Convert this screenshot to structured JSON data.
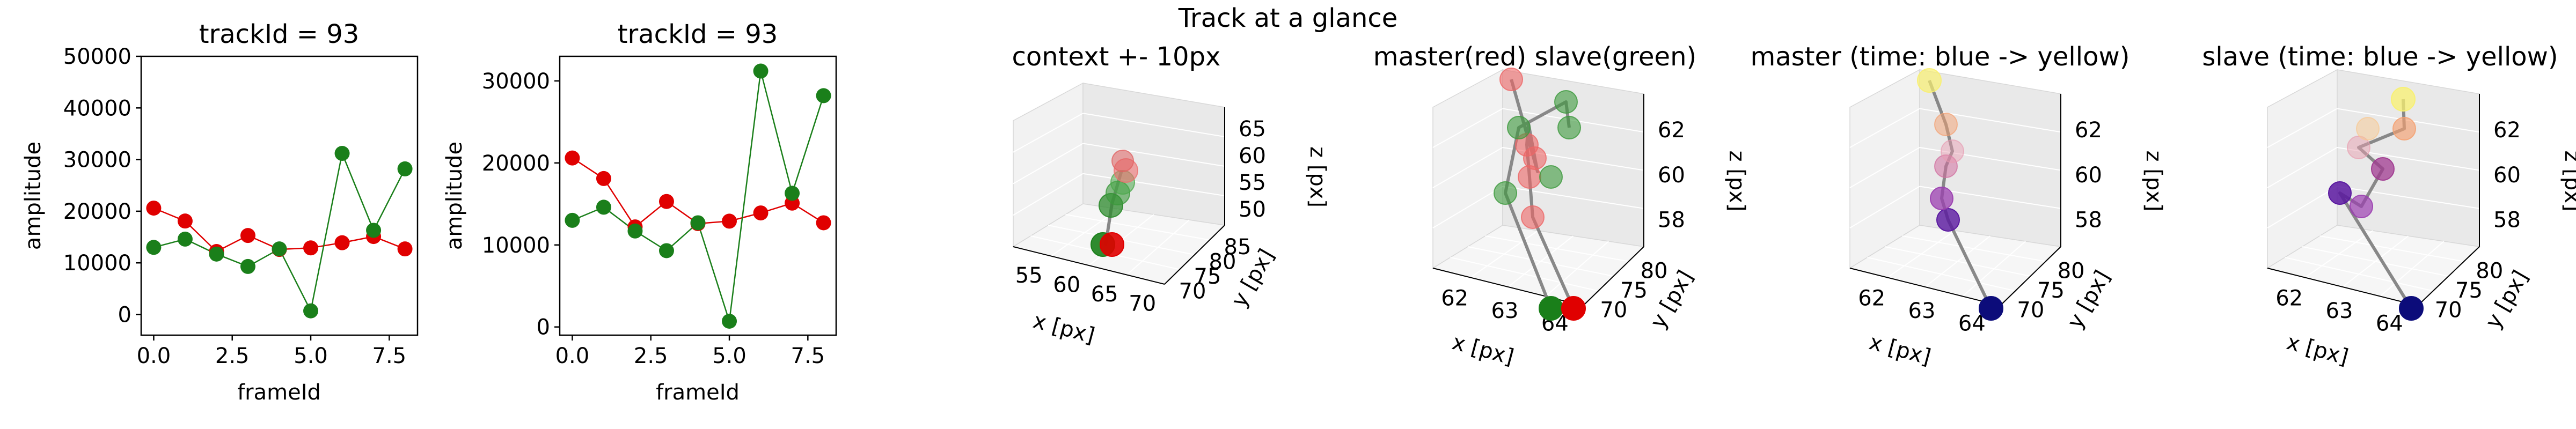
{
  "figure": {
    "suptitle": "Track at a glance"
  },
  "chart_data": [
    {
      "type": "line",
      "title": "trackId = 93",
      "xlabel": "frameId",
      "ylabel": "amplitude",
      "xlim": [
        -0.4,
        8.4
      ],
      "ylim": [
        -4000,
        50000
      ],
      "x_ticks": [
        0.0,
        2.5,
        5.0,
        7.5
      ],
      "x_tick_labels": [
        "0.0",
        "2.5",
        "5.0",
        "7.5"
      ],
      "y_ticks": [
        0,
        10000,
        20000,
        30000,
        40000,
        50000
      ],
      "y_tick_labels": [
        "0",
        "10000",
        "20000",
        "30000",
        "40000",
        "50000"
      ],
      "x": [
        0,
        1,
        2,
        3,
        4,
        5,
        6,
        7,
        8
      ],
      "series": [
        {
          "color": "#e00000",
          "values": [
            20600,
            18100,
            12200,
            15300,
            12600,
            12900,
            13900,
            15100,
            12700
          ]
        },
        {
          "color": "#1a7f1a",
          "values": [
            13000,
            14600,
            11700,
            9300,
            12700,
            700,
            31200,
            16300,
            28200
          ]
        }
      ]
    },
    {
      "type": "line",
      "title": "trackId = 93",
      "xlabel": "frameId",
      "ylabel": "amplitude",
      "xlim": [
        -0.4,
        8.4
      ],
      "ylim": [
        -1000,
        33000
      ],
      "x_ticks": [
        0.0,
        2.5,
        5.0,
        7.5
      ],
      "x_tick_labels": [
        "0.0",
        "2.5",
        "5.0",
        "7.5"
      ],
      "y_ticks": [
        0,
        10000,
        20000,
        30000
      ],
      "y_tick_labels": [
        "0",
        "10000",
        "20000",
        "30000"
      ],
      "x": [
        0,
        1,
        2,
        3,
        4,
        5,
        6,
        7,
        8
      ],
      "series": [
        {
          "color": "#e00000",
          "values": [
            20600,
            18100,
            12200,
            15300,
            12600,
            12900,
            13900,
            15100,
            12700
          ]
        },
        {
          "color": "#1a7f1a",
          "values": [
            13000,
            14600,
            11700,
            9300,
            12700,
            700,
            31200,
            16300,
            28200
          ]
        }
      ]
    },
    {
      "type": "scatter",
      "projection": "3d",
      "title": "context +- 10px",
      "xlabel": "x [px]",
      "ylabel": "y [px]",
      "zlabel": "z [px]",
      "x_tick_labels": [
        "55",
        "60",
        "65",
        "70"
      ],
      "y_tick_labels": [
        "70",
        "75",
        "80",
        "85"
      ],
      "z_tick_labels": [
        "50",
        "55",
        "60",
        "65"
      ],
      "points": [
        {
          "x": 70,
          "y": 80,
          "z": 50,
          "color": "#e00000"
        },
        {
          "x": 69,
          "y": 80,
          "z": 50,
          "color": "#1a7f1a"
        },
        {
          "x": 70,
          "y": 80,
          "z": 56,
          "color": "#e06060"
        },
        {
          "x": 69,
          "y": 80,
          "z": 56,
          "color": "#2e8b2e"
        },
        {
          "x": 71,
          "y": 80,
          "z": 59,
          "color": "#3c9a3c"
        },
        {
          "x": 71,
          "y": 80,
          "z": 61,
          "color": "#4aa84a"
        },
        {
          "x": 71,
          "y": 80,
          "z": 62,
          "color": "#ee7070"
        }
      ]
    },
    {
      "type": "scatter",
      "projection": "3d",
      "title": "master(red) slave(green)",
      "xlabel": "x [px]",
      "ylabel": "y [px]",
      "zlabel": "z [px]",
      "x_tick_labels": [
        "62",
        "63",
        "64"
      ],
      "y_tick_labels": [
        "70",
        "75",
        "80"
      ],
      "z_tick_labels": [
        "58",
        "60",
        "62"
      ],
      "points": [
        {
          "series": "master",
          "color": "#e00000"
        },
        {
          "series": "slave",
          "color": "#1a7f1a"
        }
      ]
    },
    {
      "type": "scatter",
      "projection": "3d",
      "title": "master (time: blue -> yellow)",
      "xlabel": "x [px]",
      "ylabel": "y [px]",
      "zlabel": "z [px]",
      "x_tick_labels": [
        "62",
        "63",
        "64"
      ],
      "y_tick_labels": [
        "70",
        "75",
        "80"
      ],
      "z_tick_labels": [
        "58",
        "60",
        "62"
      ],
      "colormap": [
        "#0c0c7a",
        "#5a18a0",
        "#9b3fb0",
        "#d170a0",
        "#f4a070",
        "#f8f070"
      ]
    },
    {
      "type": "scatter",
      "projection": "3d",
      "title": "slave (time: blue -> yellow)",
      "xlabel": "x [px]",
      "ylabel": "y [px]",
      "zlabel": "z [px]",
      "x_tick_labels": [
        "62",
        "63",
        "64"
      ],
      "y_tick_labels": [
        "70",
        "75",
        "80"
      ],
      "z_tick_labels": [
        "58",
        "60",
        "62"
      ],
      "colormap": [
        "#0c0c7a",
        "#5a18a0",
        "#9b3fb0",
        "#d170a0",
        "#f4a070",
        "#f8f070"
      ]
    }
  ]
}
